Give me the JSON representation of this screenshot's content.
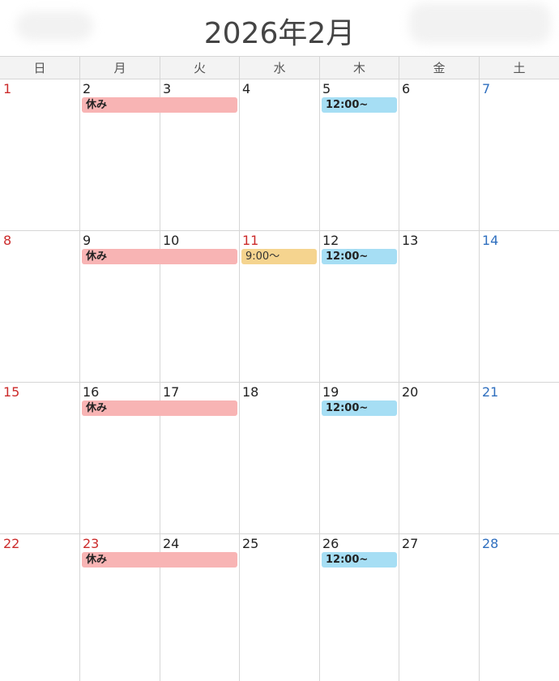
{
  "header": {
    "title": "2026年2月"
  },
  "weekdays": [
    "日",
    "月",
    "火",
    "水",
    "木",
    "金",
    "土"
  ],
  "colors": {
    "sunday": "#cc2b2b",
    "saturday": "#2f6fbf",
    "rest": "#f8b4b4",
    "time": "#a6def4",
    "morning": "#f5d48f"
  },
  "weeks": [
    {
      "days": [
        "1",
        "2",
        "3",
        "4",
        "5",
        "6",
        "7"
      ],
      "events": [
        {
          "label": "休み",
          "type": "rest"
        },
        {
          "label": "12:00~",
          "type": "time"
        }
      ]
    },
    {
      "days": [
        "8",
        "9",
        "10",
        "11",
        "12",
        "13",
        "14"
      ],
      "events": [
        {
          "label": "休み",
          "type": "rest"
        },
        {
          "label": "9:00～",
          "type": "morning"
        },
        {
          "label": "12:00~",
          "type": "time"
        }
      ]
    },
    {
      "days": [
        "15",
        "16",
        "17",
        "18",
        "19",
        "20",
        "21"
      ],
      "events": [
        {
          "label": "休み",
          "type": "rest"
        },
        {
          "label": "12:00~",
          "type": "time"
        }
      ]
    },
    {
      "days": [
        "22",
        "23",
        "24",
        "25",
        "26",
        "27",
        "28"
      ],
      "events": [
        {
          "label": "休み",
          "type": "rest"
        },
        {
          "label": "12:00~",
          "type": "time"
        }
      ]
    }
  ]
}
